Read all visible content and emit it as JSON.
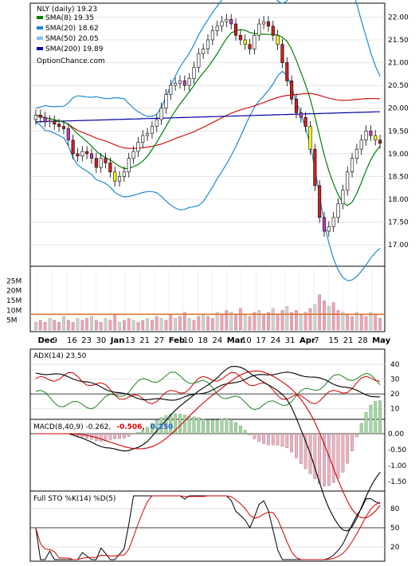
{
  "chart_data": [
    {
      "type": "candlestick",
      "ticker_label": "NLY (daily) 19.23",
      "watermark": "OptionChance.com",
      "x_ticks": [
        "Dec",
        "9",
        "16",
        "23",
        "30",
        "Jan",
        "13",
        "21",
        "27",
        "Feb",
        "10",
        "18",
        "24",
        "Mar",
        "10",
        "17",
        "24",
        "31",
        "Apr",
        "7",
        "15",
        "21",
        "28",
        "May"
      ],
      "y_ticks": [
        "22.00",
        "21.50",
        "21.00",
        "20.50",
        "20.00",
        "19.50",
        "19.00",
        "18.50",
        "18.00",
        "17.50",
        "17.00"
      ],
      "ylim": [
        16.6,
        22.2
      ],
      "grid": "horizontal",
      "legend": [
        {
          "label": "SMA(8) 19.35",
          "color": "#008000"
        },
        {
          "label": "SMA(20) 18.62",
          "color": "#2080e0"
        },
        {
          "label": "SMA(50) 20.05",
          "color": "#80c0f0"
        },
        {
          "label": "SMA(200) 19.89",
          "color": "#0000a0"
        }
      ],
      "close": [
        19.85,
        19.8,
        19.7,
        19.72,
        19.65,
        19.6,
        19.55,
        19.3,
        19.0,
        18.95,
        19.05,
        19.0,
        18.9,
        18.7,
        18.9,
        18.8,
        18.6,
        18.4,
        18.5,
        18.6,
        18.9,
        19.05,
        19.25,
        19.4,
        19.45,
        19.6,
        19.75,
        20.0,
        20.3,
        20.5,
        20.55,
        20.6,
        20.5,
        20.65,
        20.9,
        21.2,
        21.3,
        21.5,
        21.7,
        21.8,
        21.9,
        21.95,
        21.85,
        21.6,
        21.5,
        21.4,
        21.3,
        21.6,
        21.85,
        21.9,
        21.8,
        21.6,
        21.4,
        21.0,
        20.6,
        20.2,
        19.9,
        19.8,
        19.6,
        19.1,
        18.3,
        17.6,
        17.3,
        17.4,
        17.6,
        17.9,
        18.2,
        18.6,
        18.9,
        19.1,
        19.3,
        19.5,
        19.4,
        19.3,
        19.23
      ],
      "open": [
        19.75,
        19.85,
        19.8,
        19.7,
        19.72,
        19.65,
        19.6,
        19.55,
        19.3,
        19.0,
        18.95,
        19.05,
        19.0,
        18.9,
        18.7,
        18.9,
        18.8,
        18.6,
        18.4,
        18.5,
        18.6,
        18.9,
        19.05,
        19.25,
        19.4,
        19.45,
        19.6,
        19.75,
        20.0,
        20.3,
        20.5,
        20.55,
        20.6,
        20.5,
        20.65,
        20.9,
        21.2,
        21.3,
        21.5,
        21.7,
        21.8,
        21.9,
        21.95,
        21.85,
        21.6,
        21.5,
        21.4,
        21.3,
        21.6,
        21.85,
        21.9,
        21.8,
        21.6,
        21.4,
        21.0,
        20.6,
        20.2,
        19.9,
        19.8,
        19.6,
        19.1,
        18.3,
        17.6,
        17.3,
        17.4,
        17.6,
        17.9,
        18.2,
        18.6,
        18.9,
        19.1,
        19.3,
        19.5,
        19.4,
        19.3
      ]
    },
    {
      "type": "bar",
      "y_ticks": [
        "25M",
        "20M",
        "15M",
        "10M",
        "5M"
      ],
      "ylim": [
        0,
        30
      ],
      "volume_m": [
        4,
        5,
        4,
        6,
        5,
        4,
        7,
        5,
        4,
        6,
        5,
        6,
        7,
        5,
        4,
        6,
        5,
        8,
        4,
        5,
        6,
        5,
        4,
        5,
        6,
        5,
        7,
        6,
        5,
        8,
        6,
        7,
        9,
        6,
        5,
        7,
        8,
        7,
        6,
        9,
        8,
        10,
        9,
        8,
        11,
        8,
        7,
        9,
        10,
        8,
        9,
        11,
        8,
        10,
        12,
        9,
        10,
        8,
        9,
        11,
        13,
        18,
        15,
        12,
        14,
        10,
        9,
        8,
        7,
        9,
        8,
        7,
        9,
        8,
        6
      ],
      "vol_ma_m": 8
    },
    {
      "type": "line",
      "label": "ADX(14) 23.50",
      "y_ticks": [
        "40",
        "30",
        "20",
        "10"
      ],
      "ylim": [
        5,
        47
      ]
    },
    {
      "type": "line",
      "label_prefix": "MACD(8,40,9) -0.262,",
      "label_neg": "-0.506,",
      "label_pos": "0.250",
      "y_ticks": [
        "0.00",
        "-0.50",
        "-1.00",
        "-1.50"
      ],
      "ylim": [
        -1.7,
        0.3
      ]
    },
    {
      "type": "line",
      "label": "Full STO %K(14) %D(5)",
      "y_ticks": [
        "80",
        "50",
        "20"
      ],
      "ylim": [
        0,
        100
      ]
    }
  ]
}
